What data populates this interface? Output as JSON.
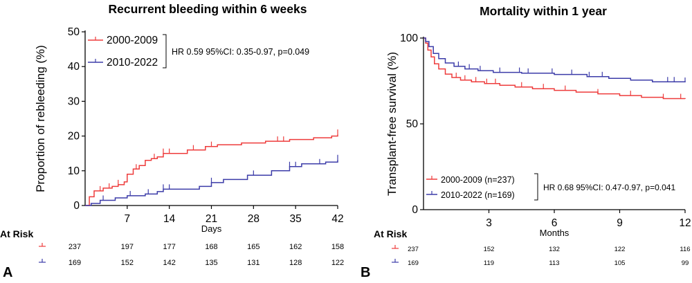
{
  "chart_data": [
    {
      "panel_label": "A",
      "type": "line",
      "subtype": "kaplan-meier-cumulative-incidence",
      "title": "Recurrent bleeding within 6 weeks",
      "xlabel": "Days",
      "ylabel": "Proportion of rebleeding (%)",
      "xlim": [
        0,
        42
      ],
      "ylim": [
        0,
        50
      ],
      "xticks": [
        7,
        14,
        21,
        28,
        35,
        42
      ],
      "yticks": [
        0,
        10,
        20,
        30,
        40,
        50
      ],
      "grid": false,
      "legend": "top-left",
      "annotation": "HR 0.59 95%CI: 0.35-0.97, p=0.049",
      "series": [
        {
          "name": "2000-2009",
          "color": "#ee3b3b",
          "steps": [
            [
              0,
              0
            ],
            [
              0.7,
              2.5
            ],
            [
              1.5,
              4.2
            ],
            [
              3,
              5
            ],
            [
              4.5,
              5.5
            ],
            [
              5.5,
              6
            ],
            [
              6.5,
              6.8
            ],
            [
              7,
              9
            ],
            [
              8,
              10.5
            ],
            [
              9,
              11.5
            ],
            [
              10,
              13
            ],
            [
              11,
              13.5
            ],
            [
              12,
              14
            ],
            [
              13,
              15
            ],
            [
              17,
              16
            ],
            [
              20,
              17
            ],
            [
              22,
              17.5
            ],
            [
              26,
              18
            ],
            [
              30,
              18.5
            ],
            [
              34,
              19
            ],
            [
              38,
              19.5
            ],
            [
              41,
              20
            ],
            [
              42,
              20.5
            ]
          ],
          "censor_times": [
            2.5,
            4,
            5.5,
            8.5,
            11.5,
            13,
            14,
            18,
            21,
            32,
            33,
            42
          ]
        },
        {
          "name": "2010-2022",
          "color": "#3b3ba8",
          "steps": [
            [
              0,
              0
            ],
            [
              1,
              0.6
            ],
            [
              2.5,
              1.5
            ],
            [
              5,
              2.2
            ],
            [
              7,
              2.8
            ],
            [
              10,
              3.3
            ],
            [
              12,
              4
            ],
            [
              13,
              4.7
            ],
            [
              19,
              5.5
            ],
            [
              21,
              6.6
            ],
            [
              23,
              7.5
            ],
            [
              27,
              8.7
            ],
            [
              31,
              10
            ],
            [
              34,
              11.2
            ],
            [
              36,
              12
            ],
            [
              40,
              12.5
            ],
            [
              42,
              13.2
            ]
          ],
          "censor_times": [
            3,
            7.5,
            10.5,
            13,
            14,
            21,
            28,
            34,
            35,
            39,
            42
          ]
        }
      ],
      "at_risk": {
        "label": "At Risk",
        "columns": [
          0,
          7,
          14,
          21,
          28,
          35,
          42
        ],
        "rows": [
          {
            "series": "2000-2009",
            "values": [
              "237",
              "197",
              "177",
              "168",
              "165",
              "162",
              "158"
            ]
          },
          {
            "series": "2010-2022",
            "values": [
              "169",
              "152",
              "142",
              "135",
              "131",
              "128",
              "122"
            ]
          }
        ]
      }
    },
    {
      "panel_label": "B",
      "type": "line",
      "subtype": "kaplan-meier-survival",
      "title": "Mortality within 1 year",
      "xlabel": "Months",
      "ylabel": "Transplant-free survival (%)",
      "xlim": [
        0,
        12
      ],
      "ylim": [
        0,
        100
      ],
      "xticks": [
        3,
        6,
        9,
        12
      ],
      "yticks": [
        0,
        50,
        100
      ],
      "grid": false,
      "legend": "bottom-left",
      "annotation": "HR 0.68 95%CI: 0.47-0.97, p=0.041",
      "series": [
        {
          "name": "2000-2009 (n=237)",
          "color": "#ee3b3b",
          "steps": [
            [
              0,
              100
            ],
            [
              0.1,
              97
            ],
            [
              0.2,
              93
            ],
            [
              0.35,
              89
            ],
            [
              0.5,
              85
            ],
            [
              0.7,
              82
            ],
            [
              1,
              79
            ],
            [
              1.3,
              77
            ],
            [
              1.7,
              75.5
            ],
            [
              2.2,
              74.5
            ],
            [
              2.8,
              73.5
            ],
            [
              3.5,
              72.5
            ],
            [
              4.2,
              71.5
            ],
            [
              5,
              70.5
            ],
            [
              6,
              69.5
            ],
            [
              7,
              68.5
            ],
            [
              8,
              67.5
            ],
            [
              9,
              66.5
            ],
            [
              10,
              65.5
            ],
            [
              11,
              64.7
            ],
            [
              12,
              64.5
            ]
          ],
          "censor_times": [
            1.5,
            1.9,
            2.4,
            2.9,
            3.3,
            4.5,
            5.5,
            6.5,
            8,
            9.5,
            11,
            11.8
          ]
        },
        {
          "name": "2010-2022 (n=169)",
          "color": "#3b3ba8",
          "steps": [
            [
              0,
              100
            ],
            [
              0.1,
              98
            ],
            [
              0.25,
              95
            ],
            [
              0.45,
              91
            ],
            [
              0.7,
              88
            ],
            [
              1,
              85.5
            ],
            [
              1.4,
              83.5
            ],
            [
              1.9,
              82
            ],
            [
              2.5,
              81
            ],
            [
              3.2,
              80
            ],
            [
              4.5,
              79.5
            ],
            [
              6,
              78.8
            ],
            [
              7.5,
              77.5
            ],
            [
              8.5,
              76.5
            ],
            [
              9.5,
              75.5
            ],
            [
              10.5,
              74.5
            ],
            [
              12,
              74.2
            ]
          ],
          "censor_times": [
            1.6,
            2.1,
            2.6,
            3.5,
            4.4,
            4.8,
            5.9,
            6.8,
            7.6,
            8.2,
            11.2,
            11.5,
            12
          ]
        }
      ],
      "at_risk": {
        "label": "At Risk",
        "columns": [
          0,
          3,
          6,
          9,
          12
        ],
        "rows": [
          {
            "series": "2000-2009",
            "values": [
              "237",
              "152",
              "132",
              "122",
              "116"
            ]
          },
          {
            "series": "2010-2022",
            "values": [
              "169",
              "119",
              "113",
              "105",
              "99"
            ]
          }
        ]
      }
    }
  ]
}
